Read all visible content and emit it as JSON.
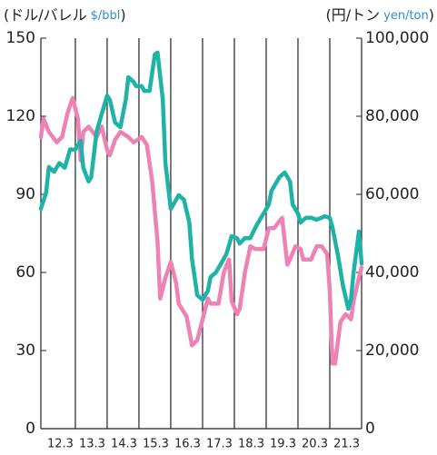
{
  "chart_data": {
    "type": "line",
    "ylabel": [
      "(ドル/バレル",
      "$/bbl",
      ")"
    ],
    "y2label": [
      "(円/トン",
      "yen/ton",
      ")"
    ],
    "xlim": [
      0,
      121
    ],
    "xticks": [
      {
        "value": 13,
        "label": "12.3"
      },
      {
        "value": 25,
        "label": "13.3"
      },
      {
        "value": 37,
        "label": "14.3"
      },
      {
        "value": 49,
        "label": "15.3"
      },
      {
        "value": 61,
        "label": "16.3"
      },
      {
        "value": 73,
        "label": "17.3"
      },
      {
        "value": 85,
        "label": "18.3"
      },
      {
        "value": 97,
        "label": "19.3"
      },
      {
        "value": 109,
        "label": "20.3"
      },
      {
        "value": 121,
        "label": "21.3"
      }
    ],
    "ylim": [
      0,
      150
    ],
    "yticks": [
      0,
      30,
      60,
      90,
      120,
      150
    ],
    "y2lim": [
      0,
      100000
    ],
    "y2ticks": [
      0,
      {
        "value": 20000,
        "label": "20,000"
      },
      {
        "value": 40000,
        "label": "40,000"
      },
      {
        "value": 60000,
        "label": "60,000"
      },
      {
        "value": 80000,
        "label": "80,000"
      },
      {
        "value": 100000,
        "label": "100,000"
      }
    ],
    "series": [
      {
        "color": "#ee82b4",
        "x": [
          0,
          1,
          3,
          6,
          8,
          10,
          12,
          14,
          15,
          16,
          18,
          21,
          23,
          25,
          26,
          28,
          30,
          33,
          35,
          38,
          40,
          42,
          44,
          45,
          47,
          49,
          51,
          52,
          55,
          57,
          59,
          61,
          63,
          64,
          67,
          69,
          71,
          72,
          74,
          75,
          77,
          79,
          81,
          84,
          86,
          88,
          91,
          93,
          94,
          96,
          98,
          99,
          102,
          104,
          106,
          108,
          109,
          110,
          111,
          113,
          115,
          117,
          118,
          120,
          121
        ],
        "values": [
          112,
          119,
          114,
          110,
          112,
          121,
          127,
          119,
          103,
          114,
          116,
          112,
          116,
          107,
          105,
          111,
          114,
          112,
          110,
          112,
          109,
          95,
          72,
          50,
          58,
          64,
          56,
          48,
          43,
          32,
          34,
          42,
          50,
          48,
          48,
          60,
          65,
          49,
          44,
          46,
          60,
          70,
          69,
          69,
          77,
          77,
          81,
          63,
          65,
          70,
          69,
          65,
          65,
          70,
          70,
          67,
          53,
          25,
          25,
          41,
          44,
          42,
          49,
          58,
          62
        ]
      },
      {
        "color": "#1fb3a8",
        "axis": "y2",
        "x": [
          0,
          2,
          3,
          5,
          7,
          9,
          11,
          13,
          15,
          16,
          18,
          19,
          21,
          23,
          25,
          26,
          28,
          30,
          32,
          33,
          35,
          36,
          38,
          39,
          41,
          43,
          44,
          46,
          47,
          49,
          50,
          52,
          54,
          56,
          57,
          59,
          61,
          63,
          64,
          66,
          68,
          70,
          72,
          74,
          75,
          77,
          79,
          81,
          82,
          84,
          86,
          87,
          90,
          92,
          94,
          95,
          97,
          98,
          100,
          102,
          104,
          106,
          107,
          109,
          110,
          112,
          114,
          116,
          117,
          118,
          120,
          121
        ],
        "values": [
          56300,
          60500,
          67000,
          65800,
          68000,
          66800,
          71500,
          71500,
          73700,
          66800,
          63300,
          64400,
          76000,
          80700,
          85300,
          84200,
          78400,
          77200,
          84200,
          90000,
          88800,
          87700,
          87700,
          86500,
          86500,
          95800,
          96300,
          84200,
          67900,
          56300,
          57400,
          59800,
          58600,
          52800,
          43500,
          34200,
          33000,
          35300,
          38800,
          40000,
          42300,
          44700,
          49300,
          48800,
          47400,
          48800,
          48800,
          51600,
          52800,
          55100,
          57400,
          60900,
          64400,
          65600,
          63300,
          57400,
          55100,
          52800,
          54000,
          54000,
          53500,
          54000,
          54400,
          54000,
          51600,
          44700,
          36500,
          30700,
          33000,
          40000,
          50500,
          42300
        ]
      }
    ]
  }
}
